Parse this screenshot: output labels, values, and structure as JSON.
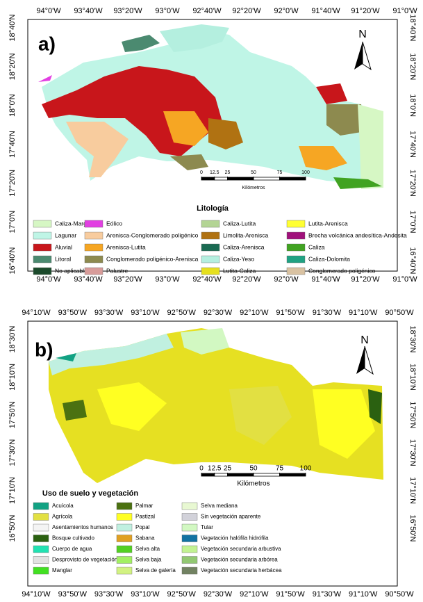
{
  "panels": [
    {
      "label": "a)",
      "lon_labels": [
        "94°0'W",
        "93°40'W",
        "93°20'W",
        "93°0'W",
        "92°40'W",
        "92°20'W",
        "92°0'W",
        "91°40'W",
        "91°20'W",
        "91°0'W"
      ],
      "lat_labels": [
        "18°40'N",
        "18°20'N",
        "18°0'N",
        "17°40'N",
        "17°20'N",
        "17°0'N",
        "16°40'N"
      ],
      "north": "N",
      "scale": {
        "ticks": [
          0,
          12.5,
          25,
          50,
          75,
          100
        ],
        "unit": "Kilómetros"
      },
      "legend": {
        "title": "Litología",
        "items": [
          {
            "label": "Caliza-Marga",
            "color": "#d6f7c4"
          },
          {
            "label": "Lagunar",
            "color": "#bff5e6"
          },
          {
            "label": "Aluvial",
            "color": "#c8161b"
          },
          {
            "label": "Litoral",
            "color": "#4b8a70"
          },
          {
            "label": "No aplicable",
            "color": "#1b4a2b"
          },
          {
            "label": "Eólico",
            "color": "#e23fe2"
          },
          {
            "label": "Arenisca-Conglomerado poligénico",
            "color": "#f8cc9e"
          },
          {
            "label": "Arenisca-Lutita",
            "color": "#f6a623"
          },
          {
            "label": "Conglomerado poligénico-Arenisca",
            "color": "#8d8a4f"
          },
          {
            "label": "Palustre",
            "color": "#d89c9a"
          },
          {
            "label": "Caliza-Lutita",
            "color": "#b3d494"
          },
          {
            "label": "Limolita-Arenisca",
            "color": "#b07212"
          },
          {
            "label": "Caliza-Arenisca",
            "color": "#1a6a52"
          },
          {
            "label": "Caliza-Yeso",
            "color": "#b4efdf"
          },
          {
            "label": "Lutita-Caliza",
            "color": "#e6e01e"
          },
          {
            "label": "Lutita-Arenisca",
            "color": "#ffff33"
          },
          {
            "label": "Brecha volcánica andesítica-Andesita",
            "color": "#a0117b"
          },
          {
            "label": "Caliza",
            "color": "#41a322"
          },
          {
            "label": "Caliza-Dolomita",
            "color": "#20a283"
          },
          {
            "label": "Conglomerado poligénico",
            "color": "#d9c2a2"
          }
        ]
      }
    },
    {
      "label": "b)",
      "lon_labels": [
        "94°10'W",
        "93°50'W",
        "93°30'W",
        "93°10'W",
        "92°50'W",
        "92°30'W",
        "92°10'W",
        "91°50'W",
        "91°30'W",
        "91°10'W",
        "90°50'W"
      ],
      "lat_labels": [
        "18°30'N",
        "18°10'N",
        "17°50'N",
        "17°30'N",
        "17°10'N",
        "16°50'N"
      ],
      "north": "N",
      "scale": {
        "ticks": [
          0,
          12.5,
          25,
          50,
          75,
          100
        ],
        "unit": "Kilómetros"
      },
      "legend": {
        "title": "Uso de suelo y vegetación",
        "items": [
          {
            "label": "Acuícola",
            "color": "#12a283"
          },
          {
            "label": "Agrícola",
            "color": "#e2e042"
          },
          {
            "label": "Asentamientos humanos",
            "color": "#f4f4f4"
          },
          {
            "label": "Bosque cultivado",
            "color": "#2b6111"
          },
          {
            "label": "Cuerpo de agua",
            "color": "#22e2b2"
          },
          {
            "label": "Desprovisto de vegetación",
            "color": "#e2e2e2"
          },
          {
            "label": "Manglar",
            "color": "#42e022"
          },
          {
            "label": "Palmar",
            "color": "#4b7111"
          },
          {
            "label": "Pastizal",
            "color": "#ffff22"
          },
          {
            "label": "Popal",
            "color": "#c0f0e0"
          },
          {
            "label": "Sabana",
            "color": "#e0a022"
          },
          {
            "label": "Selva alta",
            "color": "#52d022"
          },
          {
            "label": "Selva baja",
            "color": "#a2f062"
          },
          {
            "label": "Selva de galería",
            "color": "#d2f282"
          },
          {
            "label": "Selva mediana",
            "color": "#e8f8d2"
          },
          {
            "label": "Sin vegetación aparente",
            "color": "#d2d2da"
          },
          {
            "label": "Tular",
            "color": "#d2f8c2"
          },
          {
            "label": "Vegetación halófila hidrófila",
            "color": "#1272a2"
          },
          {
            "label": "Vegetación secundaria arbustiva",
            "color": "#c2f292"
          },
          {
            "label": "Vegetación secundaria arbórea",
            "color": "#92c872"
          },
          {
            "label": "Vegetación secundaria herbácea",
            "color": "#728262"
          }
        ]
      }
    }
  ]
}
